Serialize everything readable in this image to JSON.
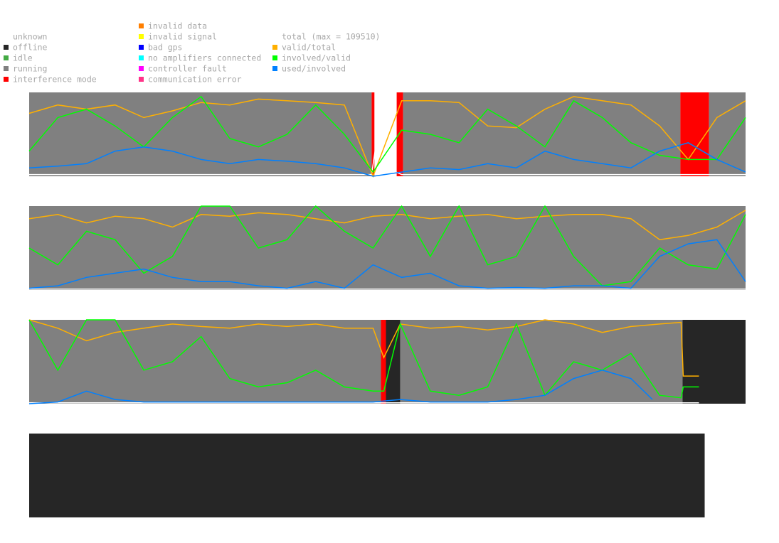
{
  "legend": {
    "status": [
      {
        "label": "unknown",
        "color": "#ffffff"
      },
      {
        "label": "offline",
        "color": "#262626"
      },
      {
        "label": "idle",
        "color": "#44aa44"
      },
      {
        "label": "running",
        "color": "#808080"
      },
      {
        "label": "interference mode",
        "color": "#ff0000"
      },
      {
        "label": "invalid data",
        "color": "#ff7f00"
      },
      {
        "label": "invalid signal",
        "color": "#ffff00"
      },
      {
        "label": "bad gps",
        "color": "#0000ff"
      },
      {
        "label": "no amplifiers connected",
        "color": "#00ffff"
      },
      {
        "label": "controller fault",
        "color": "#ff00ff"
      },
      {
        "label": "communication error",
        "color": "#ff3388"
      }
    ],
    "lines": [
      {
        "label": "total (max = 109510)",
        "color": "#ffffff"
      },
      {
        "label": "valid/total",
        "color": "#ffb000"
      },
      {
        "label": "involved/valid",
        "color": "#00ff00"
      },
      {
        "label": "used/involved",
        "color": "#0080ff"
      }
    ]
  },
  "panels": [
    {
      "segments": [
        {
          "status": 3,
          "from": 0,
          "to": 47.8
        },
        {
          "status": 4,
          "from": 47.8,
          "to": 48.2
        },
        {
          "status": 0,
          "from": 48.2,
          "to": 51.3
        },
        {
          "status": 4,
          "from": 51.3,
          "to": 52.2
        },
        {
          "status": 3,
          "from": 52.2,
          "to": 90.9
        },
        {
          "status": 4,
          "from": 90.9,
          "to": 94.9
        },
        {
          "status": 3,
          "from": 94.9,
          "to": 100
        }
      ],
      "series": [
        {
          "line": 0,
          "x": [
            0,
            47.8,
            49.5,
            51.2,
            52,
            100
          ],
          "values": [
            0.02,
            0.02,
            1.0,
            0.05,
            0.02,
            0.02
          ]
        },
        {
          "line": 1,
          "x": [
            0,
            4,
            8,
            12,
            16,
            20,
            24,
            28,
            32,
            36,
            40,
            44,
            48,
            52,
            56,
            60,
            64,
            68,
            72,
            76,
            80,
            84,
            88,
            92,
            96,
            100
          ],
          "values": [
            0.75,
            0.85,
            0.8,
            0.85,
            0.7,
            0.78,
            0.88,
            0.85,
            0.92,
            0.9,
            0.88,
            0.85,
            0.0,
            0.9,
            0.9,
            0.88,
            0.6,
            0.58,
            0.8,
            0.95,
            0.9,
            0.85,
            0.6,
            0.2,
            0.7,
            0.9
          ]
        },
        {
          "line": 2,
          "x": [
            0,
            4,
            8,
            12,
            16,
            20,
            24,
            28,
            32,
            36,
            40,
            44,
            48,
            52,
            56,
            60,
            64,
            68,
            72,
            76,
            80,
            84,
            88,
            92,
            96,
            100
          ],
          "values": [
            0.3,
            0.7,
            0.8,
            0.6,
            0.35,
            0.7,
            0.95,
            0.45,
            0.35,
            0.5,
            0.85,
            0.5,
            0.05,
            0.55,
            0.5,
            0.4,
            0.8,
            0.6,
            0.35,
            0.9,
            0.7,
            0.4,
            0.25,
            0.2,
            0.2,
            0.7
          ]
        },
        {
          "line": 3,
          "x": [
            0,
            4,
            8,
            12,
            16,
            20,
            24,
            28,
            32,
            36,
            40,
            44,
            48,
            52,
            56,
            60,
            64,
            68,
            72,
            76,
            80,
            84,
            88,
            92,
            96,
            100
          ],
          "values": [
            0.1,
            0.12,
            0.15,
            0.3,
            0.35,
            0.3,
            0.2,
            0.15,
            0.2,
            0.18,
            0.15,
            0.1,
            0.0,
            0.05,
            0.1,
            0.08,
            0.15,
            0.1,
            0.3,
            0.2,
            0.15,
            0.1,
            0.3,
            0.4,
            0.2,
            0.05
          ]
        }
      ]
    },
    {
      "segments": [
        {
          "status": 3,
          "from": 0,
          "to": 100
        }
      ],
      "series": [
        {
          "line": 0,
          "x": [
            0,
            100
          ],
          "values": [
            0.01,
            0.01
          ]
        },
        {
          "line": 1,
          "x": [
            0,
            4,
            8,
            12,
            16,
            20,
            24,
            28,
            32,
            36,
            40,
            44,
            48,
            52,
            56,
            60,
            64,
            68,
            72,
            76,
            80,
            84,
            88,
            92,
            96,
            100
          ],
          "values": [
            0.85,
            0.9,
            0.8,
            0.88,
            0.85,
            0.75,
            0.9,
            0.88,
            0.92,
            0.9,
            0.85,
            0.8,
            0.88,
            0.9,
            0.85,
            0.88,
            0.9,
            0.85,
            0.88,
            0.9,
            0.9,
            0.85,
            0.6,
            0.65,
            0.75,
            0.95
          ]
        },
        {
          "line": 2,
          "x": [
            0,
            4,
            8,
            12,
            16,
            20,
            24,
            28,
            32,
            36,
            40,
            44,
            48,
            52,
            56,
            60,
            64,
            68,
            72,
            76,
            80,
            84,
            88,
            92,
            96,
            100
          ],
          "values": [
            0.5,
            0.3,
            0.7,
            0.6,
            0.2,
            0.4,
            1.0,
            1.0,
            0.5,
            0.6,
            1.0,
            0.7,
            0.5,
            1.0,
            0.4,
            1.0,
            0.3,
            0.4,
            1.0,
            0.4,
            0.05,
            0.1,
            0.5,
            0.3,
            0.25,
            0.9
          ]
        },
        {
          "line": 3,
          "x": [
            0,
            4,
            8,
            12,
            16,
            20,
            24,
            28,
            32,
            36,
            40,
            44,
            48,
            52,
            56,
            60,
            64,
            68,
            72,
            76,
            80,
            84,
            88,
            92,
            96,
            100
          ],
          "values": [
            0.02,
            0.05,
            0.15,
            0.2,
            0.25,
            0.15,
            0.1,
            0.1,
            0.05,
            0.02,
            0.1,
            0.02,
            0.3,
            0.15,
            0.2,
            0.05,
            0.02,
            0.03,
            0.02,
            0.05,
            0.05,
            0.02,
            0.4,
            0.55,
            0.6,
            0.1
          ]
        }
      ]
    },
    {
      "segments": [
        {
          "status": 3,
          "from": 0,
          "to": 49.1
        },
        {
          "status": 4,
          "from": 49.1,
          "to": 49.8
        },
        {
          "status": 1,
          "from": 49.8,
          "to": 51.8
        },
        {
          "status": 3,
          "from": 51.8,
          "to": 91.2
        },
        {
          "status": 1,
          "from": 91.2,
          "to": 100
        }
      ],
      "series": [
        {
          "line": 0,
          "x": [
            0,
            93.5
          ],
          "values": [
            0.01,
            0.01
          ]
        },
        {
          "line": 1,
          "x": [
            0,
            4,
            8,
            12,
            16,
            20,
            24,
            28,
            32,
            36,
            40,
            44,
            48,
            49.5,
            51.8,
            56,
            60,
            64,
            68,
            72,
            76,
            80,
            84,
            88,
            91,
            91.3,
            93.5
          ],
          "values": [
            1.0,
            0.9,
            0.75,
            0.85,
            0.9,
            0.95,
            0.92,
            0.9,
            0.95,
            0.92,
            0.95,
            0.9,
            0.9,
            0.55,
            0.95,
            0.9,
            0.92,
            0.88,
            0.92,
            1.0,
            0.95,
            0.85,
            0.92,
            0.95,
            0.97,
            0.33,
            0.33
          ]
        },
        {
          "line": 2,
          "x": [
            0,
            4,
            8,
            12,
            16,
            20,
            24,
            28,
            32,
            36,
            40,
            44,
            48,
            49.5,
            51.8,
            56,
            60,
            64,
            68,
            72,
            76,
            80,
            84,
            88,
            91,
            91.3,
            93.5
          ],
          "values": [
            1.0,
            0.4,
            1.0,
            1.0,
            0.4,
            0.5,
            0.8,
            0.3,
            0.2,
            0.25,
            0.4,
            0.2,
            0.15,
            0.15,
            0.95,
            0.15,
            0.1,
            0.2,
            0.95,
            0.1,
            0.5,
            0.4,
            0.6,
            0.1,
            0.07,
            0.2,
            0.2
          ]
        },
        {
          "line": 3,
          "x": [
            0,
            4,
            8,
            12,
            16,
            20,
            24,
            28,
            32,
            36,
            40,
            44,
            48,
            51.8,
            56,
            60,
            64,
            68,
            72,
            76,
            80,
            84,
            87
          ],
          "values": [
            0,
            0.02,
            0.15,
            0.05,
            0.02,
            0.02,
            0.02,
            0.02,
            0.02,
            0.02,
            0.02,
            0.02,
            0.02,
            0.05,
            0.02,
            0.02,
            0.02,
            0.05,
            0.1,
            0.3,
            0.4,
            0.3,
            0.05
          ]
        }
      ]
    },
    {
      "segments": [
        {
          "status": 1,
          "from": 0,
          "to": 94.3
        },
        {
          "status": 0,
          "from": 94.3,
          "to": 100
        }
      ],
      "series": []
    }
  ]
}
